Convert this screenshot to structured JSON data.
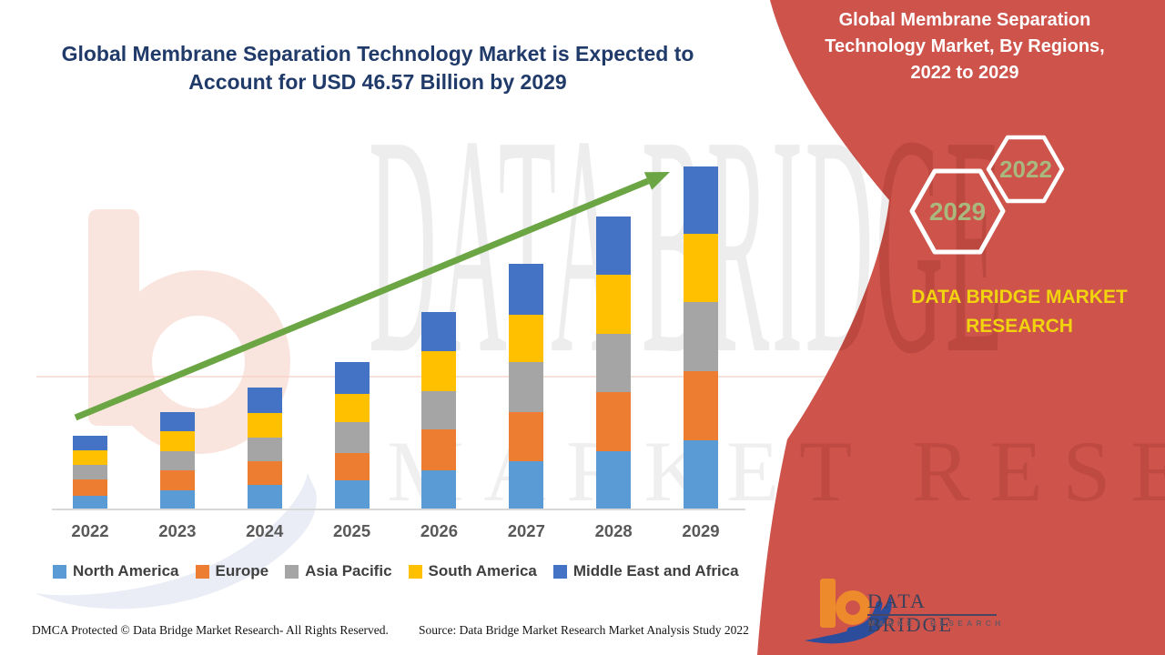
{
  "main": {
    "title_line1": "Global Membrane Separation Technology Market is Expected to",
    "title_line2": "Account for USD 46.57 Billion by 2029"
  },
  "chart_data": {
    "type": "bar",
    "stacked": true,
    "title": "Global Membrane Separation Technology Market, By Regions, 2022 to 2029",
    "unit": "USD Billion",
    "categories": [
      "2022",
      "2023",
      "2024",
      "2025",
      "2026",
      "2027",
      "2028",
      "2029"
    ],
    "series": [
      {
        "name": "North America",
        "color": "#5B9BD5",
        "values": [
          1.9,
          2.6,
          3.3,
          4.0,
          5.3,
          6.5,
          7.9,
          9.4
        ]
      },
      {
        "name": "Europe",
        "color": "#ED7D31",
        "values": [
          2.2,
          2.7,
          3.2,
          3.7,
          5.6,
          6.7,
          8.0,
          9.4
        ]
      },
      {
        "name": "Asia Pacific",
        "color": "#A5A5A5",
        "values": [
          1.9,
          2.6,
          3.3,
          4.2,
          5.2,
          6.8,
          8.0,
          9.4
        ]
      },
      {
        "name": "South America",
        "color": "#FFC000",
        "values": [
          2.0,
          2.7,
          3.3,
          3.8,
          5.4,
          6.4,
          8.0,
          9.2
        ]
      },
      {
        "name": "Middle East and Africa",
        "color": "#4472C4",
        "values": [
          2.0,
          2.6,
          3.5,
          4.3,
          5.3,
          6.9,
          7.9,
          9.17
        ]
      }
    ],
    "totals": [
      10.0,
      13.2,
      16.6,
      20.0,
      26.8,
      33.3,
      39.8,
      46.57
    ],
    "ylim": [
      0,
      50
    ],
    "grid": false,
    "legend_position": "bottom",
    "trend_arrow": "up",
    "trend_arrow_color": "#6CA644"
  },
  "footer": {
    "dmca": "DMCA Protected © Data Bridge Market Research- All Rights Reserved.",
    "source": "Source: Data Bridge Market Research Market Analysis Study 2022"
  },
  "panel": {
    "title_line1": "Global Membrane Separation",
    "title_line2": "Technology Market, By Regions,",
    "title_line3": "2022 to 2029",
    "hexagon_back_year": "2022",
    "hexagon_front_year": "2029",
    "brand_line1": "DATA BRIDGE MARKET",
    "brand_line2": "RESEARCH",
    "logo_title": "DATA BRIDGE",
    "logo_subtitle": "MARKET RESEARCH",
    "colors": {
      "panel_red": "#CD534B",
      "hexagon_border": "#FFFFFF",
      "hexagon_text": "#A9B87D",
      "brand_yellow": "#F1D40E",
      "logo_orange": "#ED8A2C",
      "logo_blue": "#2C4C9C"
    }
  },
  "watermark": {
    "line1": "DATA BRIDGE",
    "line2": "MARKET RESEARCH"
  }
}
